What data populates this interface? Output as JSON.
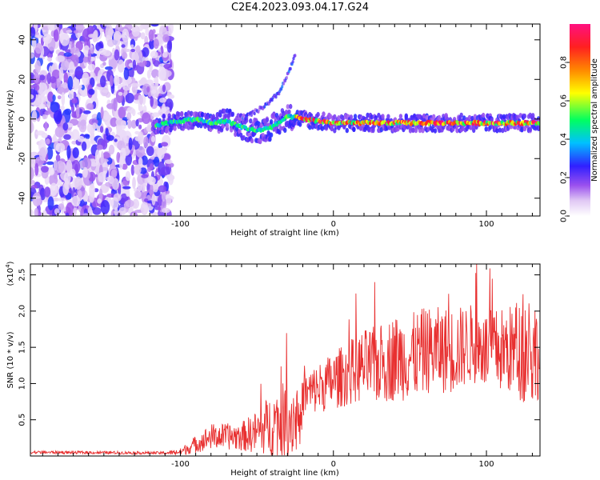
{
  "title": "C2E4.2023.093.04.17.G24",
  "chart_data": [
    {
      "type": "heatmap",
      "title": "",
      "xlabel": "Height of straight line (km)",
      "ylabel": "Frequency (Hz)",
      "xlim": [
        -198,
        135
      ],
      "ylim": [
        -49,
        48
      ],
      "xticks": [
        -100,
        0,
        100
      ],
      "yticks": [
        -40,
        -20,
        0,
        20,
        40
      ],
      "colorbar": {
        "label": "Normalized spectral amplitude",
        "range": [
          0,
          1
        ],
        "ticks": [
          0.0,
          0.2,
          0.4,
          0.6,
          0.8
        ],
        "colormap": "rainbow",
        "colors": [
          "#ffffff",
          "#cfa8f0",
          "#7b2be6",
          "#2020ff",
          "#00c8ff",
          "#00ff60",
          "#ffff00",
          "#ff8000",
          "#ff2020",
          "#ff1080"
        ]
      },
      "noise_region_x": [
        -198,
        -110
      ],
      "ridge": {
        "x": [
          -115,
          -100,
          -90,
          -80,
          -70,
          -60,
          -50,
          -40,
          -30,
          -25,
          -20,
          -10,
          0,
          20,
          40,
          60,
          80,
          100,
          120,
          135
        ],
        "freq": [
          -3,
          -1,
          0,
          -2,
          -1,
          -4,
          -6,
          -4,
          1,
          1,
          0,
          -1,
          -2,
          -2,
          -2,
          -2,
          -2,
          -2,
          -2,
          -2
        ]
      },
      "branch": {
        "x": [
          -60,
          -50,
          -42,
          -35,
          -30,
          -27,
          -25
        ],
        "freq": [
          0,
          4,
          8,
          14,
          22,
          28,
          32
        ]
      }
    },
    {
      "type": "line",
      "title": "",
      "xlabel": "Height of straight line (km)",
      "ylabel": "SNR (10 * v/v)",
      "y_scale_label": "(x10",
      "y_scale_exp": "4",
      "y_scale_close": ")",
      "xlim": [
        -198,
        135
      ],
      "ylim": [
        0,
        2.65
      ],
      "xticks": [
        -100,
        0,
        100
      ],
      "yticks": [
        0.5,
        1.0,
        1.5,
        2.0,
        2.5
      ],
      "series": [
        {
          "color": "#e83030",
          "envelope": {
            "x": [
              -198,
              -110,
              -100,
              -90,
              -80,
              -70,
              -60,
              -50,
              -40,
              -30,
              -25,
              -22,
              -20,
              -10,
              0,
              10,
              20,
              30,
              40,
              50,
              60,
              70,
              80,
              90,
              100,
              110,
              120,
              125,
              130,
              135
            ],
            "base": [
              0.05,
              0.04,
              0.05,
              0.15,
              0.25,
              0.25,
              0.25,
              0.3,
              0.4,
              0.45,
              0.5,
              0.3,
              0.8,
              0.9,
              1.0,
              1.1,
              1.2,
              1.2,
              1.3,
              1.3,
              1.4,
              1.4,
              1.4,
              1.5,
              1.4,
              1.4,
              1.4,
              1.4,
              1.4,
              1.3
            ],
            "amp": [
              0.02,
              0.02,
              0.05,
              0.12,
              0.18,
              0.18,
              0.2,
              0.3,
              0.45,
              0.55,
              0.55,
              0.3,
              0.3,
              0.35,
              0.4,
              0.45,
              0.5,
              0.55,
              0.6,
              0.6,
              0.6,
              0.6,
              0.6,
              0.55,
              0.55,
              0.6,
              0.65,
              0.8,
              0.9,
              0.5
            ]
          }
        }
      ]
    }
  ]
}
